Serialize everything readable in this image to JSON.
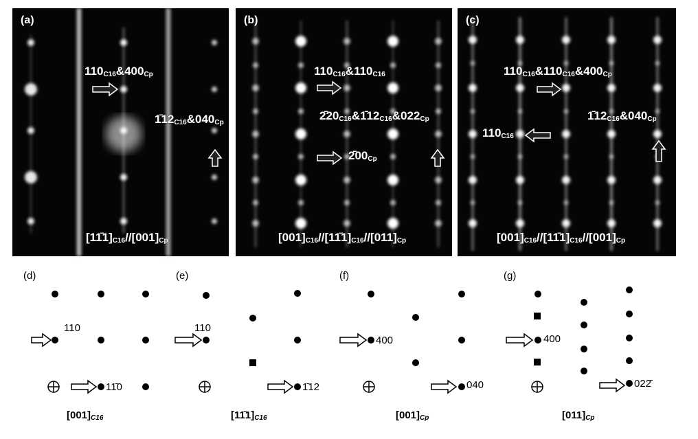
{
  "top_panels": [
    {
      "label": "(a)",
      "annotations": [
        [
          {
            "text": "110",
            "sub": "C16"
          },
          {
            "text": "&400",
            "sub": "Cp"
          }
        ],
        [
          {
            "text": "1̄12",
            "sub": "C16"
          },
          {
            "text": "&040",
            "sub": "Cp"
          }
        ]
      ],
      "zone": [
        {
          "text": "[11̄1]",
          "sub": "C16"
        },
        {
          "text": "//[001]",
          "sub": "Cp"
        }
      ]
    },
    {
      "label": "(b)",
      "annotations": [
        [
          {
            "text": "110",
            "sub": "C16"
          },
          {
            "text": "&110",
            "sub": "C16"
          }
        ],
        [
          {
            "text": "2̄20",
            "sub": "C16"
          },
          {
            "text": "&1̄12",
            "sub": "C16"
          },
          {
            "text": "&022",
            "sub": "Cp"
          }
        ],
        [
          {
            "text": "2̄00",
            "sub": "Cp"
          }
        ]
      ],
      "zone": [
        {
          "text": "[001]",
          "sub": "C16"
        },
        {
          "text": "//[11̄1]",
          "sub": "C16"
        },
        {
          "text": "//[011]",
          "sub": "Cp"
        }
      ]
    },
    {
      "label": "(c)",
      "annotations": [
        [
          {
            "text": "110",
            "sub": "C16"
          },
          {
            "text": "&110",
            "sub": "C16"
          },
          {
            "text": "&400",
            "sub": "Cp"
          }
        ],
        [
          {
            "text": "1̄12",
            "sub": "C16"
          },
          {
            "text": "&040",
            "sub": "Cp"
          }
        ],
        [
          {
            "text": "110",
            "sub": "C16"
          }
        ]
      ],
      "zone": [
        {
          "text": "[001]",
          "sub": "C16"
        },
        {
          "text": "//[11̄1]",
          "sub": "C16"
        },
        {
          "text": "//[001]",
          "sub": "Cp"
        }
      ]
    }
  ],
  "bottom_panels": [
    {
      "label": "(d)",
      "spots": [
        "110",
        "11̄0"
      ],
      "zone": [
        {
          "text": "[001]",
          "sub": "C16"
        }
      ]
    },
    {
      "label": "(e)",
      "spots": [
        "110",
        "1̄12"
      ],
      "zone": [
        {
          "text": "[11̄1]",
          "sub": "C16"
        }
      ]
    },
    {
      "label": "(f)",
      "spots": [
        "400",
        "040"
      ],
      "zone": [
        {
          "text": "[001]",
          "sub": "Cp"
        }
      ]
    },
    {
      "label": "(g)",
      "spots": [
        "400",
        "022̄"
      ],
      "zone": [
        {
          "text": "[011]",
          "sub": "Cp"
        }
      ]
    }
  ]
}
